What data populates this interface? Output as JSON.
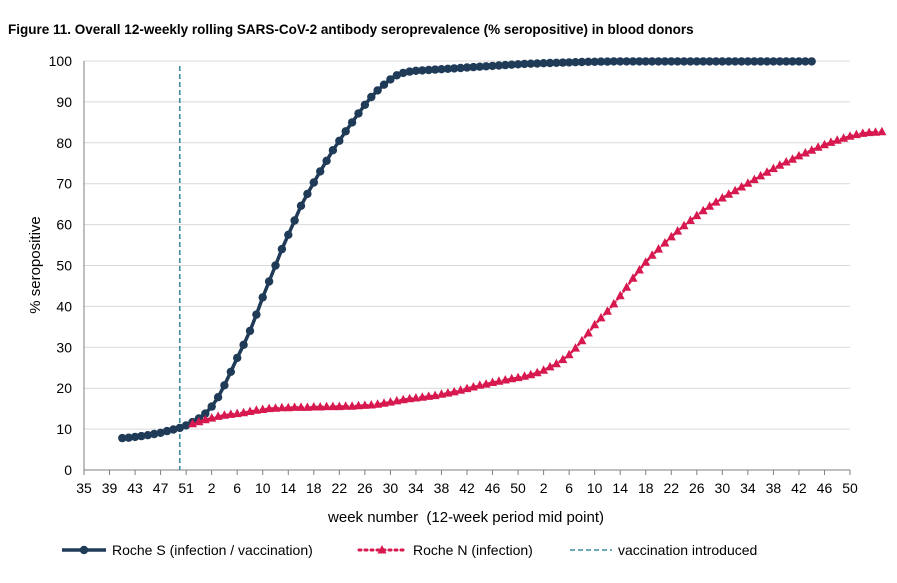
{
  "figure_title": "Figure 11. Overall 12-weekly rolling SARS-CoV-2 antibody seroprevalence (% seropositive) in blood donors",
  "colors": {
    "roche_s": "#1f3b57",
    "roche_n": "#d7194f",
    "vaccination": "#3c8ca0",
    "grid": "#d9d9d9",
    "axis": "#7f7f7f"
  },
  "chart_data": {
    "type": "line",
    "title": "Figure 11. Overall 12-weekly rolling SARS-CoV-2 antibody seroprevalence (% seropositive) in blood donors",
    "xlabel": "week number  (12-week period mid point)",
    "ylabel": "% seropositive",
    "ylim": [
      0,
      100
    ],
    "yticks": [
      0,
      10,
      20,
      30,
      40,
      50,
      60,
      70,
      80,
      90,
      100
    ],
    "grid": "horizontal",
    "legend_position": "bottom",
    "x_tick_labels": [
      "35",
      "39",
      "43",
      "47",
      "51",
      "2",
      "6",
      "10",
      "14",
      "18",
      "22",
      "26",
      "30",
      "34",
      "38",
      "42",
      "46",
      "50",
      "2",
      "6",
      "10",
      "14",
      "18",
      "22",
      "26",
      "30",
      "34",
      "38",
      "42",
      "46",
      "50"
    ],
    "x_unit_note": "continuous week sequence (2020 wk 35 → 2022 wk 50); tick every 4 weeks",
    "vaccination_week_index": 15,
    "series": [
      {
        "name": "Roche S (infection / vaccination)",
        "key": "roche_s",
        "marker": "circle",
        "start_index": 6,
        "values": [
          7.8,
          7.9,
          8.1,
          8.3,
          8.5,
          8.8,
          9.1,
          9.5,
          9.9,
          10.3,
          10.9,
          11.7,
          12.6,
          13.8,
          15.5,
          17.8,
          20.7,
          24,
          27.4,
          30.6,
          34,
          38,
          42.2,
          46.1,
          50,
          54,
          57.5,
          61,
          64.6,
          67.5,
          70.3,
          73,
          75.6,
          78.2,
          80.5,
          82.8,
          85,
          87.2,
          89.3,
          91.2,
          92.8,
          94.2,
          95.5,
          96.5,
          97.1,
          97.4,
          97.6,
          97.7,
          97.8,
          97.9,
          98,
          98.1,
          98.2,
          98.3,
          98.4,
          98.5,
          98.6,
          98.7,
          98.8,
          98.9,
          99,
          99.1,
          99.2,
          99.3,
          99.35,
          99.4,
          99.45,
          99.5,
          99.55,
          99.6,
          99.65,
          99.7,
          99.75,
          99.8,
          99.8,
          99.85,
          99.85,
          99.9,
          99.9,
          99.9,
          99.9,
          99.9,
          99.9,
          99.9,
          99.9,
          99.9,
          99.9,
          99.9,
          99.9,
          99.9,
          99.9,
          99.9,
          99.9,
          99.9,
          99.9,
          99.9,
          99.9,
          99.9,
          99.9,
          99.9,
          99.9,
          99.9,
          99.9,
          99.9,
          99.9,
          99.9,
          99.9,
          99.9,
          99.9
        ]
      },
      {
        "name": "Roche N (infection)",
        "key": "roche_n",
        "marker": "triangle",
        "start_index": 17,
        "values": [
          11.3,
          11.8,
          12.3,
          12.7,
          13.1,
          13.4,
          13.6,
          13.8,
          14,
          14.3,
          14.6,
          14.8,
          15,
          15.1,
          15.2,
          15.2,
          15.3,
          15.3,
          15.3,
          15.4,
          15.4,
          15.5,
          15.5,
          15.5,
          15.6,
          15.6,
          15.7,
          15.8,
          15.9,
          16.1,
          16.3,
          16.6,
          16.9,
          17.2,
          17.4,
          17.6,
          17.8,
          18,
          18.2,
          18.5,
          18.8,
          19.1,
          19.5,
          19.9,
          20.3,
          20.7,
          21,
          21.4,
          21.7,
          22,
          22.3,
          22.6,
          22.9,
          23.3,
          23.8,
          24.4,
          25.2,
          26,
          27,
          28.2,
          29.8,
          31.6,
          33.5,
          35.5,
          37.2,
          38.8,
          40.6,
          42.6,
          44.7,
          46.9,
          48.9,
          50.8,
          52.5,
          54,
          55.5,
          57,
          58.4,
          59.7,
          61,
          62.2,
          63.4,
          64.5,
          65.5,
          66.5,
          67.4,
          68.3,
          69.2,
          70.1,
          71,
          71.9,
          72.8,
          73.7,
          74.5,
          75.3,
          76,
          76.8,
          77.5,
          78.2,
          78.9,
          79.5,
          80.1,
          80.6,
          81.1,
          81.6,
          82,
          82.3,
          82.5,
          82.6,
          82.7
        ]
      }
    ]
  },
  "legend": {
    "roche_s": "Roche S (infection / vaccination)",
    "roche_n": "Roche N (infection)",
    "vaccination": "vaccination introduced"
  }
}
